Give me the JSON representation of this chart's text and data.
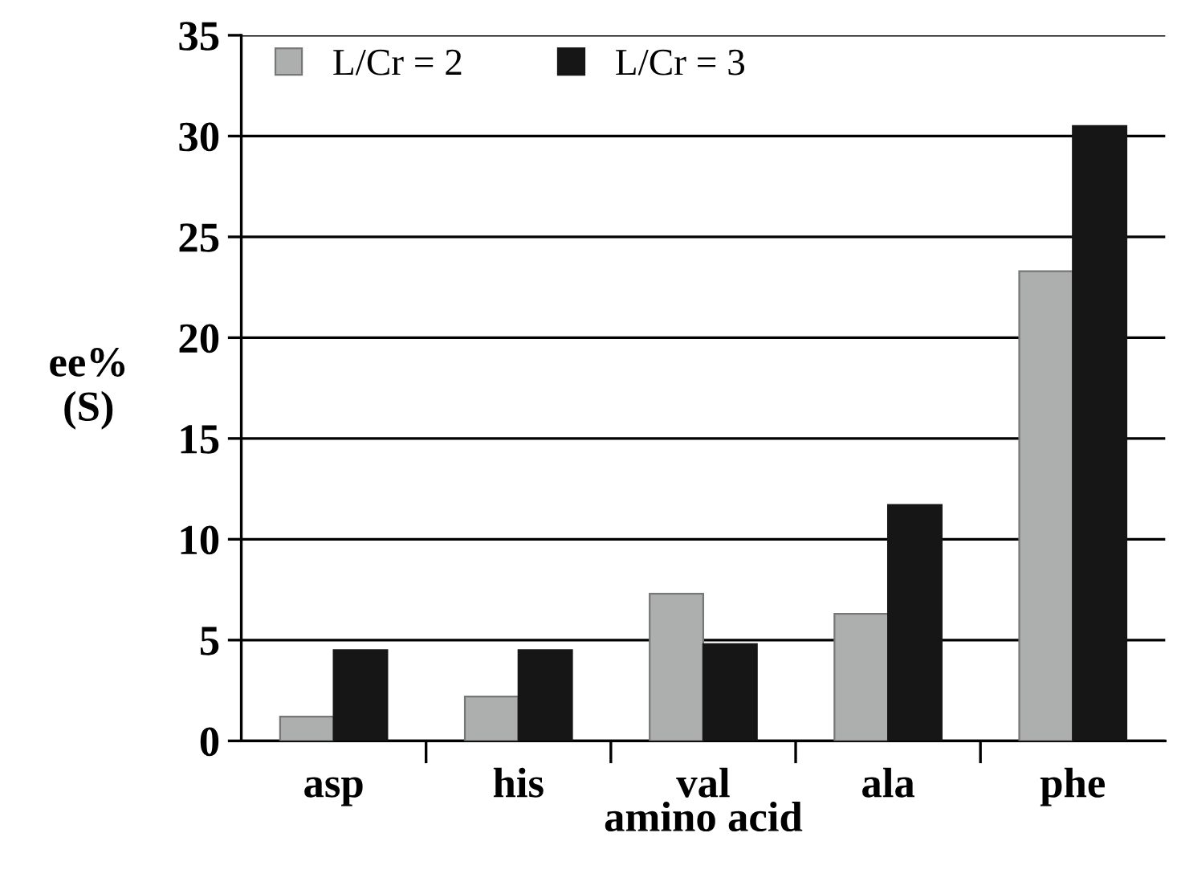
{
  "chart_data": {
    "type": "bar",
    "categories": [
      "asp",
      "his",
      "val",
      "ala",
      "phe"
    ],
    "xlabel": "amino acid",
    "ylabel": "ee%\n(S)",
    "series": [
      {
        "name": "L/Cr = 2",
        "color": "#adaeae",
        "values": [
          1.2,
          2.2,
          7.3,
          6.3,
          23.3
        ]
      },
      {
        "name": "L/Cr = 3",
        "color": "#161616",
        "values": [
          4.5,
          4.5,
          4.8,
          11.7,
          30.5
        ]
      }
    ],
    "ylim": [
      0,
      35
    ],
    "yticks": [
      0,
      5,
      10,
      15,
      20,
      25,
      30,
      35
    ],
    "grid": "y",
    "legend": "top left"
  }
}
